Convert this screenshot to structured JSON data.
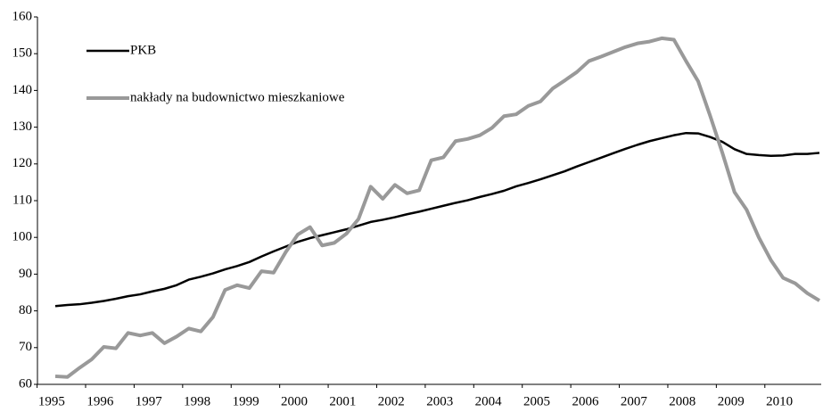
{
  "chart_data": {
    "type": "line",
    "categories": [
      "1995",
      null,
      null,
      null,
      "1996",
      null,
      null,
      null,
      "1997",
      null,
      null,
      null,
      "1998",
      null,
      null,
      null,
      "1999",
      null,
      null,
      null,
      "2000",
      null,
      null,
      null,
      "2001",
      null,
      null,
      null,
      "2002",
      null,
      null,
      null,
      "2003",
      null,
      null,
      null,
      "2004",
      null,
      null,
      null,
      "2005",
      null,
      null,
      null,
      "2006",
      null,
      null,
      null,
      "2007",
      null,
      null,
      null,
      "2008",
      null,
      null,
      null,
      "2009",
      null,
      null,
      null,
      "2010",
      null,
      null,
      null
    ],
    "series": [
      {
        "name": "PKB",
        "color": "#000000",
        "values": [
          81.3,
          81.6,
          81.8,
          82.2,
          82.7,
          83.3,
          84.0,
          84.5,
          85.3,
          86.0,
          87.0,
          88.5,
          89.3,
          90.2,
          91.3,
          92.2,
          93.3,
          94.8,
          96.2,
          97.5,
          98.8,
          99.8,
          100.6,
          101.4,
          102.2,
          103.2,
          104.2,
          104.8,
          105.5,
          106.3,
          107.0,
          107.8,
          108.6,
          109.4,
          110.1,
          111.0,
          111.8,
          112.7,
          113.9,
          114.8,
          115.8,
          116.9,
          118.0,
          119.3,
          120.5,
          121.7,
          122.9,
          124.1,
          125.2,
          126.2,
          127.0,
          127.8,
          128.4,
          128.3,
          127.3,
          126.0,
          124.0,
          122.7,
          122.4,
          122.2,
          122.3,
          122.7,
          122.7,
          123.0
        ]
      },
      {
        "name": "nakłady na budownictwo mieszkaniowe",
        "color": "#999999",
        "values": [
          62.2,
          62.0,
          64.5,
          66.8,
          70.2,
          69.8,
          74.0,
          73.3,
          74.0,
          71.2,
          73.0,
          75.2,
          74.4,
          78.3,
          85.7,
          87.0,
          86.2,
          90.8,
          90.4,
          96.0,
          100.8,
          102.8,
          97.8,
          98.5,
          101.0,
          105.0,
          113.8,
          110.5,
          114.3,
          112.0,
          112.8,
          121.0,
          121.8,
          126.2,
          126.8,
          127.8,
          129.8,
          133.0,
          133.5,
          135.8,
          137.0,
          140.5,
          142.7,
          145.0,
          148.0,
          149.2,
          150.5,
          151.8,
          152.8,
          153.3,
          154.2,
          153.8,
          148.0,
          142.5,
          133.0,
          123.0,
          112.3,
          107.5,
          100.0,
          93.8,
          89.0,
          87.5,
          84.8,
          82.8
        ]
      }
    ],
    "ylim": [
      60,
      160
    ],
    "yticks": [
      60,
      70,
      80,
      90,
      100,
      110,
      120,
      130,
      140,
      150,
      160
    ]
  }
}
